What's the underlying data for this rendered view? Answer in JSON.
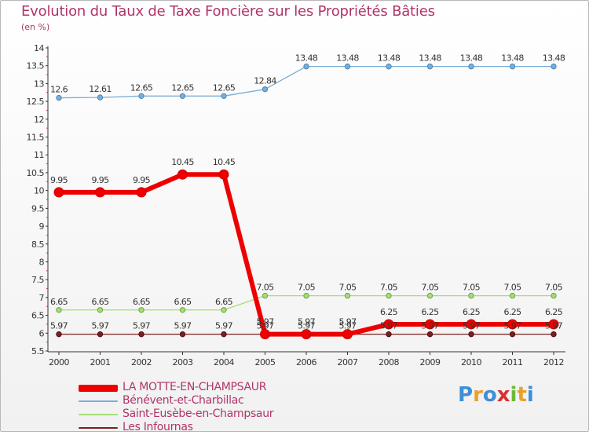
{
  "header": {
    "title": "Evolution du Taux de Taxe Foncière sur les Propriétés Bâties",
    "unit": "(en %)"
  },
  "logo": {
    "text": "Proxiti",
    "letters": [
      {
        "ch": "P",
        "color": "#3d8fd6"
      },
      {
        "ch": "r",
        "color": "#e8a12a"
      },
      {
        "ch": "o",
        "color": "#3d8fd6"
      },
      {
        "ch": "x",
        "color": "#d93030"
      },
      {
        "ch": "i",
        "color": "#6cb83a"
      },
      {
        "ch": "t",
        "color": "#e8a12a"
      },
      {
        "ch": "i",
        "color": "#3d8fd6"
      }
    ]
  },
  "chart_data": {
    "type": "line",
    "title": "Evolution du Taux de Taxe Foncière sur les Propriétés Bâties",
    "ylabel": "(en %)",
    "xlabel": "",
    "ylim": [
      5.5,
      14
    ],
    "y_ticks": [
      "5.5",
      "6",
      "6.5",
      "7",
      "7.5",
      "8",
      "8.5",
      "9",
      "9.5",
      "10",
      "10.5",
      "11",
      "11.5",
      "12",
      "12.5",
      "13",
      "13.5",
      "14"
    ],
    "categories": [
      "2000",
      "2001",
      "2002",
      "2003",
      "2004",
      "2005",
      "2006",
      "2007",
      "2008",
      "2009",
      "2010",
      "2011",
      "2012"
    ],
    "grid": false,
    "series": [
      {
        "name": "LA MOTTE-EN-CHAMPSAUR",
        "color": "#ee0000",
        "values": [
          9.95,
          9.95,
          9.95,
          10.45,
          10.45,
          5.97,
          5.97,
          5.97,
          6.25,
          6.25,
          6.25,
          6.25,
          6.25
        ],
        "labels": [
          "9.95",
          "9.95",
          "9.95",
          "10.45",
          "10.45",
          "5.97",
          "5.97",
          "5.97",
          "6.25",
          "6.25",
          "6.25",
          "6.25",
          "6.25"
        ]
      },
      {
        "name": "Bénévent-et-Charbillac",
        "color": "#7aaed8",
        "values": [
          12.6,
          12.61,
          12.65,
          12.65,
          12.65,
          12.84,
          13.48,
          13.48,
          13.48,
          13.48,
          13.48,
          13.48,
          13.48
        ],
        "labels": [
          "12.6",
          "12.61",
          "12.65",
          "12.65",
          "12.65",
          "12.84",
          "13.48",
          "13.48",
          "13.48",
          "13.48",
          "13.48",
          "13.48",
          "13.48"
        ]
      },
      {
        "name": "Saint-Eusèbe-en-Champsaur",
        "color": "#a8dc78",
        "values": [
          6.65,
          6.65,
          6.65,
          6.65,
          6.65,
          7.05,
          7.05,
          7.05,
          7.05,
          7.05,
          7.05,
          7.05,
          7.05
        ],
        "labels": [
          "6.65",
          "6.65",
          "6.65",
          "6.65",
          "6.65",
          "7.05",
          "7.05",
          "7.05",
          "7.05",
          "7.05",
          "7.05",
          "7.05",
          "7.05"
        ]
      },
      {
        "name": "Les Infournas",
        "color": "#7a2020",
        "values": [
          5.97,
          5.97,
          5.97,
          5.97,
          5.97,
          5.97,
          5.97,
          5.97,
          5.97,
          5.97,
          5.97,
          5.97,
          5.97
        ],
        "labels": [
          "5.97",
          "5.97",
          "5.97",
          "5.97",
          "5.97",
          "5.97",
          "5.97",
          "5.97",
          "5.97",
          "5.97",
          "5.97",
          "5.97",
          "5.97"
        ]
      }
    ]
  }
}
